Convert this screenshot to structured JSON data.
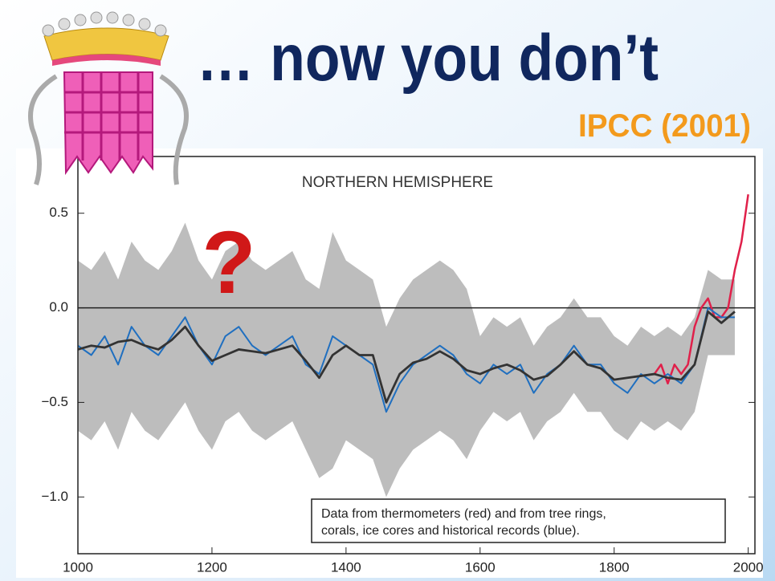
{
  "header": {
    "title": "… now you don’t",
    "source": "IPCC (2001)",
    "mark": "?"
  },
  "chart_data": {
    "type": "line",
    "title": "NORTHERN HEMISPHERE",
    "annotation": [
      "Data from thermometers (red) and from tree rings,",
      "corals, ice cores and historical records (blue)."
    ],
    "xlim": [
      1000,
      2010
    ],
    "ylim": [
      -1.3,
      0.8
    ],
    "xticks": [
      1000,
      1200,
      1400,
      1600,
      1800,
      2000
    ],
    "yticks": [
      {
        "value": -1.0,
        "label": "−1.0"
      },
      {
        "value": -0.5,
        "label": "−0.5"
      },
      {
        "value": 0.0,
        "label": "0.0"
      },
      0.5
    ],
    "grid": false,
    "x": [
      1000,
      1020,
      1040,
      1060,
      1080,
      1100,
      1120,
      1140,
      1160,
      1180,
      1200,
      1220,
      1240,
      1260,
      1280,
      1300,
      1320,
      1340,
      1360,
      1380,
      1400,
      1420,
      1440,
      1460,
      1480,
      1500,
      1520,
      1540,
      1560,
      1580,
      1600,
      1620,
      1640,
      1660,
      1680,
      1700,
      1720,
      1740,
      1760,
      1780,
      1800,
      1820,
      1840,
      1860,
      1880,
      1900,
      1920,
      1940,
      1960,
      1980
    ],
    "band": {
      "color": "#bdbdbd",
      "upper": [
        0.25,
        0.2,
        0.3,
        0.15,
        0.35,
        0.25,
        0.2,
        0.3,
        0.45,
        0.25,
        0.15,
        0.3,
        0.35,
        0.25,
        0.2,
        0.25,
        0.3,
        0.15,
        0.1,
        0.4,
        0.25,
        0.2,
        0.15,
        -0.1,
        0.05,
        0.15,
        0.2,
        0.25,
        0.2,
        0.1,
        -0.15,
        -0.05,
        -0.1,
        -0.05,
        -0.2,
        -0.1,
        -0.05,
        0.05,
        -0.05,
        -0.05,
        -0.15,
        -0.2,
        -0.1,
        -0.15,
        -0.1,
        -0.15,
        -0.05,
        0.2,
        0.15,
        0.15
      ],
      "lower": [
        -0.65,
        -0.7,
        -0.6,
        -0.75,
        -0.55,
        -0.65,
        -0.7,
        -0.6,
        -0.5,
        -0.65,
        -0.75,
        -0.6,
        -0.55,
        -0.65,
        -0.7,
        -0.65,
        -0.6,
        -0.75,
        -0.9,
        -0.85,
        -0.7,
        -0.75,
        -0.8,
        -1.0,
        -0.85,
        -0.75,
        -0.7,
        -0.65,
        -0.7,
        -0.8,
        -0.65,
        -0.55,
        -0.6,
        -0.55,
        -0.7,
        -0.6,
        -0.55,
        -0.45,
        -0.55,
        -0.55,
        -0.65,
        -0.7,
        -0.6,
        -0.65,
        -0.6,
        -0.65,
        -0.55,
        -0.25,
        -0.25,
        -0.25
      ]
    },
    "series": [
      {
        "color": "#1f6fc0",
        "values": [
          -0.2,
          -0.25,
          -0.15,
          -0.3,
          -0.1,
          -0.2,
          -0.25,
          -0.15,
          -0.05,
          -0.2,
          -0.3,
          -0.15,
          -0.1,
          -0.2,
          -0.25,
          -0.2,
          -0.15,
          -0.3,
          -0.35,
          -0.15,
          -0.2,
          -0.25,
          -0.3,
          -0.55,
          -0.4,
          -0.3,
          -0.25,
          -0.2,
          -0.25,
          -0.35,
          -0.4,
          -0.3,
          -0.35,
          -0.3,
          -0.45,
          -0.35,
          -0.3,
          -0.2,
          -0.3,
          -0.3,
          -0.4,
          -0.45,
          -0.35,
          -0.4,
          -0.35,
          -0.4,
          -0.3,
          0.0,
          -0.05,
          -0.05
        ]
      },
      {
        "color": "#333333",
        "values": [
          -0.22,
          -0.2,
          -0.21,
          -0.18,
          -0.17,
          -0.2,
          -0.22,
          -0.17,
          -0.1,
          -0.2,
          -0.28,
          -0.25,
          -0.22,
          -0.23,
          -0.24,
          -0.22,
          -0.2,
          -0.28,
          -0.37,
          -0.25,
          -0.2,
          -0.25,
          -0.25,
          -0.5,
          -0.35,
          -0.29,
          -0.27,
          -0.23,
          -0.27,
          -0.33,
          -0.35,
          -0.32,
          -0.3,
          -0.33,
          -0.38,
          -0.36,
          -0.3,
          -0.23,
          -0.3,
          -0.32,
          -0.38,
          -0.37,
          -0.36,
          -0.35,
          -0.37,
          -0.38,
          -0.3,
          -0.02,
          -0.08,
          -0.02
        ]
      }
    ],
    "red": {
      "color": "#e0204a",
      "x": [
        1860,
        1870,
        1880,
        1890,
        1900,
        1910,
        1920,
        1930,
        1940,
        1950,
        1960,
        1970,
        1980,
        1990,
        2000
      ],
      "values": [
        -0.35,
        -0.3,
        -0.4,
        -0.3,
        -0.35,
        -0.3,
        -0.1,
        0.0,
        0.05,
        -0.05,
        -0.05,
        0.0,
        0.2,
        0.35,
        0.6
      ]
    }
  }
}
